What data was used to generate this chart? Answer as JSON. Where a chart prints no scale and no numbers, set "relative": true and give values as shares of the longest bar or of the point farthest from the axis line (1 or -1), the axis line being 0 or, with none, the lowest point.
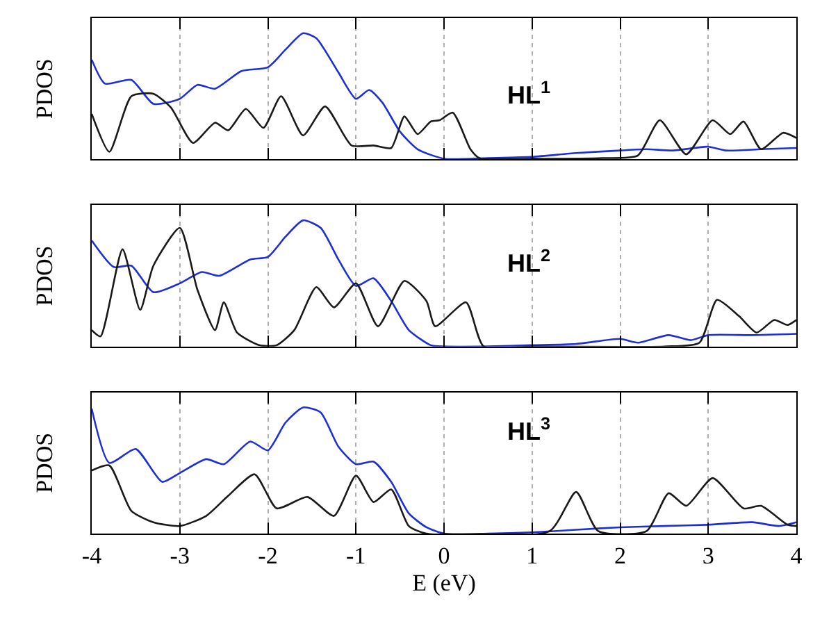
{
  "chart_data": [
    {
      "type": "line",
      "relative": true,
      "ylabel": "PDOS",
      "annotations": [
        "HL$^{1}$"
      ],
      "xlim": [
        -4,
        4
      ],
      "xticks": [
        -4,
        -3,
        -2,
        -1,
        0,
        1,
        2,
        3,
        4
      ],
      "tick_labels": false,
      "grid": "x",
      "marker": "none",
      "line_style": "solid",
      "series": [
        {
          "color": "#1f2fd6",
          "x": [
            -4,
            -3.85,
            -3.55,
            -3.3,
            -3.0,
            -2.8,
            -2.6,
            -2.3,
            -2.0,
            -1.8,
            -1.6,
            -1.45,
            -1.2,
            -1.0,
            -0.85,
            -0.7,
            -0.5,
            -0.3,
            0,
            0.5,
            1,
            1.5,
            2.0,
            2.3,
            2.6,
            3.0,
            3.2,
            3.6,
            4
          ],
          "values": [
            0.79,
            0.6,
            0.63,
            0.44,
            0.48,
            0.59,
            0.56,
            0.7,
            0.73,
            0.87,
            1.0,
            0.96,
            0.69,
            0.48,
            0.55,
            0.45,
            0.22,
            0.08,
            0.005,
            0.01,
            0.02,
            0.05,
            0.07,
            0.08,
            0.07,
            0.1,
            0.07,
            0.08,
            0.09
          ]
        },
        {
          "color": "#1a1a1a",
          "x": [
            -4,
            -3.8,
            -3.55,
            -3.3,
            -3.1,
            -2.85,
            -2.6,
            -2.45,
            -2.25,
            -2.05,
            -1.85,
            -1.6,
            -1.35,
            -1.05,
            -0.8,
            -0.6,
            -0.45,
            -0.3,
            -0.15,
            -0.05,
            0.1,
            0.3,
            0.4,
            1.0,
            1.8,
            2.2,
            2.45,
            2.75,
            3.05,
            3.25,
            3.4,
            3.6,
            3.85,
            4
          ],
          "values": [
            0.36,
            0.06,
            0.5,
            0.52,
            0.41,
            0.13,
            0.29,
            0.23,
            0.4,
            0.25,
            0.5,
            0.19,
            0.42,
            0.11,
            0.11,
            0.09,
            0.34,
            0.2,
            0.3,
            0.31,
            0.37,
            0.08,
            0.01,
            0.005,
            0.01,
            0.03,
            0.31,
            0.04,
            0.31,
            0.2,
            0.3,
            0.08,
            0.21,
            0.17
          ]
        }
      ]
    },
    {
      "type": "line",
      "relative": true,
      "ylabel": "PDOS",
      "annotations": [
        "HL$^{2}$"
      ],
      "xlim": [
        -4,
        4
      ],
      "xticks": [
        -4,
        -3,
        -2,
        -1,
        0,
        1,
        2,
        3,
        4
      ],
      "tick_labels": false,
      "grid": "x",
      "marker": "none",
      "line_style": "solid",
      "series": [
        {
          "color": "#1f2fd6",
          "x": [
            -4,
            -3.75,
            -3.55,
            -3.3,
            -3.0,
            -2.75,
            -2.55,
            -2.2,
            -2.0,
            -1.8,
            -1.6,
            -1.4,
            -1.2,
            -1.0,
            -0.8,
            -0.6,
            -0.4,
            -0.15,
            0,
            0.5,
            1.0,
            1.5,
            2.0,
            2.2,
            2.55,
            2.8,
            3.0,
            3.5,
            4
          ],
          "values": [
            0.84,
            0.63,
            0.64,
            0.43,
            0.5,
            0.59,
            0.56,
            0.69,
            0.71,
            0.87,
            1.0,
            0.94,
            0.69,
            0.48,
            0.54,
            0.36,
            0.13,
            0.01,
            0,
            0,
            0.01,
            0.02,
            0.06,
            0.03,
            0.09,
            0.05,
            0.09,
            0.09,
            0.1
          ]
        },
        {
          "color": "#1a1a1a",
          "x": [
            -4,
            -3.9,
            -3.65,
            -3.45,
            -3.3,
            -3.0,
            -2.8,
            -2.6,
            -2.5,
            -2.35,
            -2.1,
            -1.9,
            -1.7,
            -1.45,
            -1.25,
            -1.0,
            -0.75,
            -0.45,
            -0.2,
            -0.1,
            0.25,
            0.45,
            1.0,
            2.5,
            2.9,
            3.1,
            3.35,
            3.55,
            3.75,
            3.9,
            4
          ],
          "values": [
            0.13,
            0.08,
            0.77,
            0.29,
            0.64,
            0.94,
            0.45,
            0.13,
            0.35,
            0.11,
            0.01,
            0.01,
            0.13,
            0.47,
            0.31,
            0.5,
            0.16,
            0.52,
            0.36,
            0.16,
            0.35,
            0,
            0,
            0,
            0.03,
            0.37,
            0.24,
            0.11,
            0.21,
            0.17,
            0.21
          ]
        }
      ]
    },
    {
      "type": "line",
      "relative": true,
      "ylabel": "PDOS",
      "xlabel": "E (eV)",
      "annotations": [
        "HL$^{3}$"
      ],
      "xlim": [
        -4,
        4
      ],
      "xticks": [
        -4,
        -3,
        -2,
        -1,
        0,
        1,
        2,
        3,
        4
      ],
      "tick_labels": "x",
      "grid": "x",
      "marker": "none",
      "line_style": "solid",
      "series": [
        {
          "color": "#1f2fd6",
          "x": [
            -4,
            -3.8,
            -3.5,
            -3.2,
            -3.0,
            -2.7,
            -2.5,
            -2.2,
            -2.0,
            -1.8,
            -1.6,
            -1.4,
            -1.2,
            -1.0,
            -0.8,
            -0.6,
            -0.4,
            -0.2,
            0,
            0.5,
            1.0,
            1.5,
            2.0,
            2.5,
            3.0,
            3.5,
            3.8,
            4
          ],
          "values": [
            0.99,
            0.56,
            0.67,
            0.41,
            0.48,
            0.59,
            0.55,
            0.73,
            0.66,
            0.88,
            1.0,
            0.96,
            0.69,
            0.55,
            0.57,
            0.41,
            0.16,
            0.05,
            0,
            0,
            0.01,
            0.03,
            0.05,
            0.06,
            0.07,
            0.09,
            0.06,
            0.09
          ]
        },
        {
          "color": "#1a1a1a",
          "x": [
            -4,
            -3.8,
            -3.55,
            -3.3,
            -3.0,
            -2.7,
            -2.45,
            -2.15,
            -1.9,
            -1.55,
            -1.25,
            -1.0,
            -0.8,
            -0.6,
            -0.4,
            -0.2,
            1.2,
            1.5,
            1.75,
            2.3,
            2.55,
            2.75,
            3.05,
            3.4,
            3.6,
            3.9,
            4
          ],
          "values": [
            0.5,
            0.54,
            0.18,
            0.09,
            0.06,
            0.14,
            0.3,
            0.47,
            0.2,
            0.29,
            0.14,
            0.46,
            0.25,
            0.35,
            0.06,
            0,
            0.02,
            0.33,
            0.02,
            0.02,
            0.32,
            0.22,
            0.44,
            0.2,
            0.22,
            0.07,
            0.06
          ]
        }
      ]
    }
  ]
}
